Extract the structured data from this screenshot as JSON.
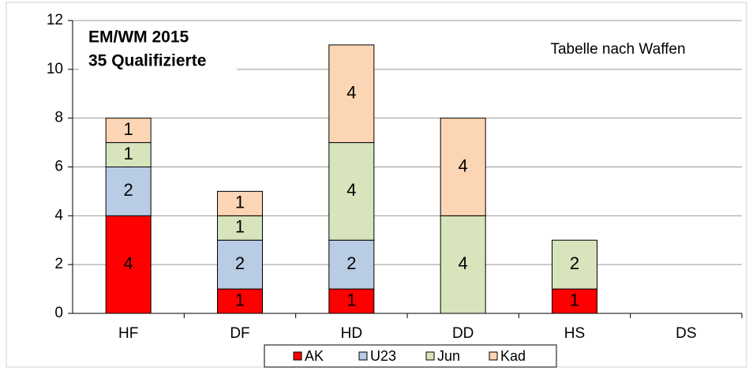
{
  "chart_data": {
    "type": "bar",
    "stacked": true,
    "title": [
      "EM/WM 2015",
      "35 Qualifizierte"
    ],
    "annotation": "Tabelle nach Waffen",
    "categories": [
      "HF",
      "DF",
      "HD",
      "DD",
      "HS",
      "DS"
    ],
    "series": [
      {
        "name": "AK",
        "color": "#ff0000",
        "values": [
          4,
          1,
          1,
          0,
          1,
          0
        ]
      },
      {
        "name": "U23",
        "color": "#b8cce4",
        "values": [
          2,
          2,
          2,
          0,
          0,
          0
        ]
      },
      {
        "name": "Jun",
        "color": "#d7e4bc",
        "values": [
          1,
          1,
          4,
          4,
          2,
          0
        ]
      },
      {
        "name": "Kad",
        "color": "#fcd5b4",
        "values": [
          1,
          1,
          4,
          4,
          0,
          0
        ]
      }
    ],
    "ylim": [
      0,
      12
    ],
    "yticks": [
      0,
      2,
      4,
      6,
      8,
      10,
      12
    ],
    "grid": true
  }
}
